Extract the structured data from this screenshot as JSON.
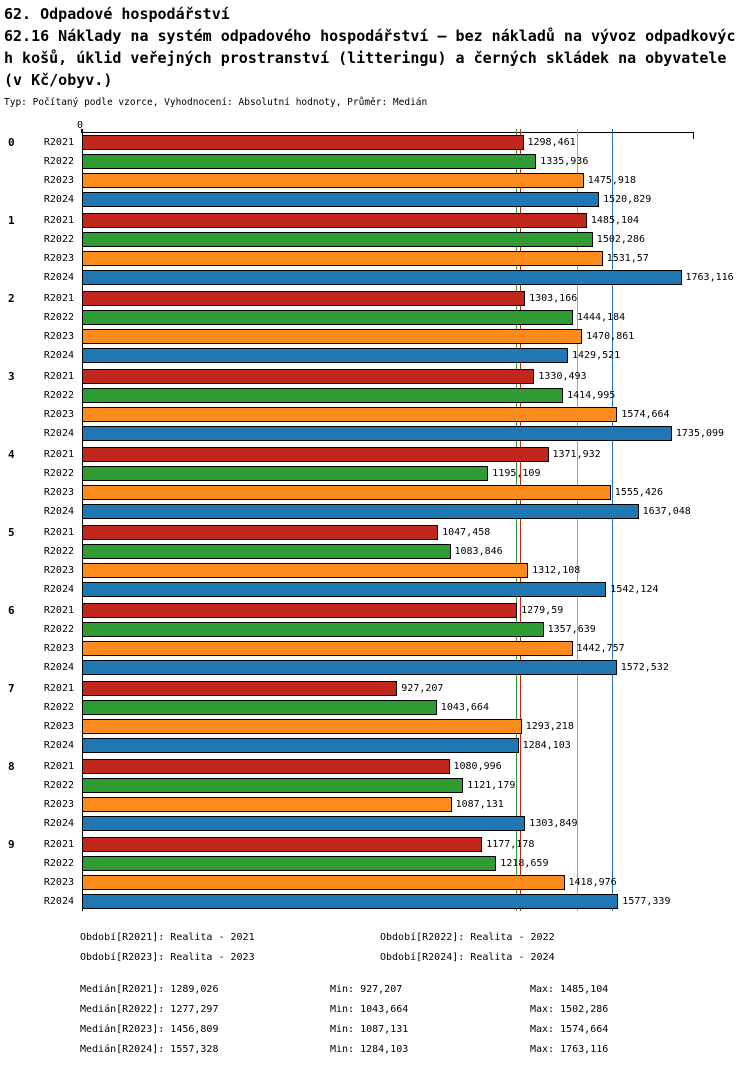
{
  "chart_data": {
    "type": "bar",
    "orientation": "horizontal",
    "title_lines": [
      "62. Odpadové hospodářství",
      "62.16 Náklady na systém odpadového hospodářství – bez nákladů na vývoz odpadkovýc",
      "h košů, úklid veřejných prostranství (litteringu) a černých skládek na obyvatele",
      "(v Kč/obyv.)"
    ],
    "subtitle": "Typ: Počítaný podle vzorce, Vyhodnocení: Absolutní hodnoty, Průměr: Medián",
    "axis_zero_label": "0",
    "xlim": [
      0,
      1800
    ],
    "row_labels": [
      "R2021",
      "R2022",
      "R2023",
      "R2024"
    ],
    "series_colors": {
      "R2021": "#c1271d",
      "R2022": "#2e9b33",
      "R2023": "#fc8b1e",
      "R2024": "#1f77b4"
    },
    "groups": [
      {
        "label": "0",
        "values": {
          "R2021": "1298,461",
          "R2022": "1335,936",
          "R2023": "1475,918",
          "R2024": "1520,829"
        }
      },
      {
        "label": "1",
        "values": {
          "R2021": "1485,104",
          "R2022": "1502,286",
          "R2023": "1531,57",
          "R2024": "1763,116"
        }
      },
      {
        "label": "2",
        "values": {
          "R2021": "1303,166",
          "R2022": "1444,184",
          "R2023": "1470,861",
          "R2024": "1429,521"
        }
      },
      {
        "label": "3",
        "values": {
          "R2021": "1330,493",
          "R2022": "1414,995",
          "R2023": "1574,664",
          "R2024": "1735,099"
        }
      },
      {
        "label": "4",
        "values": {
          "R2021": "1371,932",
          "R2022": "1195,109",
          "R2023": "1555,426",
          "R2024": "1637,048"
        }
      },
      {
        "label": "5",
        "values": {
          "R2021": "1047,458",
          "R2022": "1083,846",
          "R2023": "1312,108",
          "R2024": "1542,124"
        }
      },
      {
        "label": "6",
        "values": {
          "R2021": "1279,59",
          "R2022": "1357,639",
          "R2023": "1442,757",
          "R2024": "1572,532"
        }
      },
      {
        "label": "7",
        "values": {
          "R2021": "927,207",
          "R2022": "1043,664",
          "R2023": "1293,218",
          "R2024": "1284,103"
        }
      },
      {
        "label": "8",
        "values": {
          "R2021": "1080,996",
          "R2022": "1121,179",
          "R2023": "1087,131",
          "R2024": "1303,849"
        }
      },
      {
        "label": "9",
        "values": {
          "R2021": "1177,178",
          "R2022": "1218,659",
          "R2023": "1418,976",
          "R2024": "1577,339"
        }
      }
    ],
    "medians": {
      "R2021": "1289,026",
      "R2022": "1277,297",
      "R2023": "1456,809",
      "R2024": "1557,328"
    }
  },
  "legend": {
    "items": [
      "Období[R2021]: Realita - 2021",
      "Období[R2022]: Realita - 2022",
      "Období[R2023]: Realita - 2023",
      "Období[R2024]: Realita - 2024"
    ]
  },
  "stats": {
    "rows": [
      {
        "median": "Medián[R2021]: 1289,026",
        "min": "Min: 927,207",
        "max": "Max: 1485,104"
      },
      {
        "median": "Medián[R2022]: 1277,297",
        "min": "Min: 1043,664",
        "max": "Max: 1502,286"
      },
      {
        "median": "Medián[R2023]: 1456,809",
        "min": "Min: 1087,131",
        "max": "Max: 1574,664"
      },
      {
        "median": "Medián[R2024]: 1557,328",
        "min": "Min: 1284,103",
        "max": "Max: 1763,116"
      }
    ]
  }
}
